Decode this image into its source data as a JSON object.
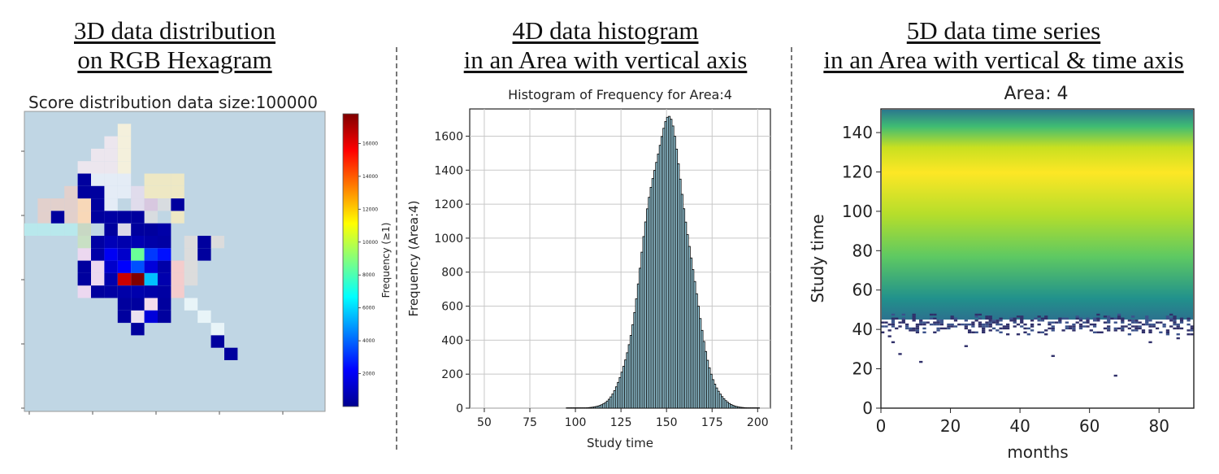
{
  "panels": {
    "left_title": [
      "3D data distribution",
      "on RGB Hexagram"
    ],
    "middle_title": [
      "4D data histogram",
      "in an Area with vertical axis"
    ],
    "right_title": [
      "5D data time series",
      "in an Area with vertical & time axis"
    ]
  },
  "chart_data": [
    {
      "type": "heatmap",
      "title": "Score distribution data size:100000",
      "colorbar_label": "Frequency (≥1)",
      "colorbar_ticks": [
        2000,
        4000,
        6000,
        8000,
        10000,
        12000,
        14000,
        16000
      ],
      "colorbar_range": [
        1,
        17800
      ],
      "colormap": "jet",
      "background_color": "#c0d6e4",
      "grid_size": [
        16,
        16
      ],
      "color_cells": [
        {
          "row": 1,
          "col": 7,
          "color": "#f4f0dc"
        },
        {
          "row": 2,
          "col": 6,
          "color": "#ece6ee"
        },
        {
          "row": 2,
          "col": 7,
          "color": "#f4f0dc"
        },
        {
          "row": 3,
          "col": 5,
          "color": "#ece6ee"
        },
        {
          "row": 3,
          "col": 6,
          "color": "#ece6ee"
        },
        {
          "row": 3,
          "col": 7,
          "color": "#f4f0dc"
        },
        {
          "row": 4,
          "col": 4,
          "color": "#ece6ee"
        },
        {
          "row": 4,
          "col": 5,
          "color": "#ece6ee"
        },
        {
          "row": 4,
          "col": 6,
          "color": "#ece6ee"
        },
        {
          "row": 4,
          "col": 7,
          "color": "#f4f0dc"
        },
        {
          "row": 5,
          "col": 5,
          "color": "#e4ecf6"
        },
        {
          "row": 5,
          "col": 6,
          "color": "#e4ecf6"
        },
        {
          "row": 5,
          "col": 7,
          "color": "#e4ecf6"
        },
        {
          "row": 5,
          "col": 9,
          "color": "#eee8c4"
        },
        {
          "row": 5,
          "col": 10,
          "color": "#eee8c4"
        },
        {
          "row": 5,
          "col": 11,
          "color": "#eee8c4"
        },
        {
          "row": 6,
          "col": 3,
          "color": "#e2d0cc"
        },
        {
          "row": 6,
          "col": 6,
          "color": "#e4ecf6"
        },
        {
          "row": 6,
          "col": 7,
          "color": "#e4ecf6"
        },
        {
          "row": 6,
          "col": 8,
          "color": "#e0dcec"
        },
        {
          "row": 6,
          "col": 9,
          "color": "#eee8c4"
        },
        {
          "row": 6,
          "col": 10,
          "color": "#eee8c4"
        },
        {
          "row": 6,
          "col": 11,
          "color": "#eee8c4"
        },
        {
          "row": 7,
          "col": 1,
          "color": "#e2d0cc"
        },
        {
          "row": 7,
          "col": 2,
          "color": "#e2d0cc"
        },
        {
          "row": 7,
          "col": 3,
          "color": "#e2d0cc"
        },
        {
          "row": 7,
          "col": 4,
          "color": "#f8d8b8"
        },
        {
          "row": 7,
          "col": 6,
          "color": "#e4ecf6"
        },
        {
          "row": 7,
          "col": 8,
          "color": "#e0dcec"
        },
        {
          "row": 7,
          "col": 9,
          "color": "#d8c8e0"
        },
        {
          "row": 7,
          "col": 10,
          "color": "#d8dce0"
        },
        {
          "row": 8,
          "col": 1,
          "color": "#e2d0cc"
        },
        {
          "row": 8,
          "col": 3,
          "color": "#e2d0cc"
        },
        {
          "row": 8,
          "col": 4,
          "color": "#f8d8b8"
        },
        {
          "row": 8,
          "col": 9,
          "color": "#d8dce0"
        },
        {
          "row": 8,
          "col": 11,
          "color": "#eee8c4"
        },
        {
          "row": 9,
          "col": 0,
          "color": "#b8e8ec"
        },
        {
          "row": 9,
          "col": 1,
          "color": "#b8e8ec"
        },
        {
          "row": 9,
          "col": 2,
          "color": "#b8e8ec"
        },
        {
          "row": 9,
          "col": 3,
          "color": "#b8e8ec"
        },
        {
          "row": 9,
          "col": 4,
          "color": "#c8d8c4"
        },
        {
          "row": 9,
          "col": 7,
          "color": "#dcd8e8"
        },
        {
          "row": 10,
          "col": 4,
          "color": "#c8e0c4"
        },
        {
          "row": 10,
          "col": 12,
          "color": "#dcdcdc"
        },
        {
          "row": 10,
          "col": 14,
          "color": "#dcdcdc"
        },
        {
          "row": 11,
          "col": 4,
          "color": "#ecd8f0"
        },
        {
          "row": 11,
          "col": 12,
          "color": "#dcdcdc"
        },
        {
          "row": 12,
          "col": 5,
          "color": "#ecd8f0"
        },
        {
          "row": 12,
          "col": 11,
          "color": "#f4cccc"
        },
        {
          "row": 12,
          "col": 12,
          "color": "#dcdcdc"
        },
        {
          "row": 13,
          "col": 5,
          "color": "#ecd8f0"
        },
        {
          "row": 13,
          "col": 11,
          "color": "#f4cccc"
        },
        {
          "row": 13,
          "col": 12,
          "color": "#dcdcdc"
        },
        {
          "row": 14,
          "col": 4,
          "color": "#ecd8f0"
        },
        {
          "row": 14,
          "col": 11,
          "color": "#f4cccc"
        },
        {
          "row": 15,
          "col": 9,
          "color": "#f4dcec"
        },
        {
          "row": 15,
          "col": 12,
          "color": "#e8f4f8"
        },
        {
          "row": 16,
          "col": 8,
          "color": "#ece0f0"
        },
        {
          "row": 16,
          "col": 13,
          "color": "#e8f4f8"
        },
        {
          "row": 17,
          "col": 14,
          "color": "#e8f4f8"
        }
      ],
      "counted_cells": [
        {
          "row": 5,
          "col": 4,
          "value": 300
        },
        {
          "row": 6,
          "col": 4,
          "value": 300
        },
        {
          "row": 6,
          "col": 5,
          "value": 300
        },
        {
          "row": 7,
          "col": 5,
          "value": 300
        },
        {
          "row": 8,
          "col": 5,
          "value": 300
        },
        {
          "row": 8,
          "col": 7,
          "value": 300
        },
        {
          "row": 8,
          "col": 8,
          "value": 300
        },
        {
          "row": 9,
          "col": 6,
          "value": 300
        },
        {
          "row": 9,
          "col": 8,
          "value": 300
        },
        {
          "row": 9,
          "col": 9,
          "value": 300
        },
        {
          "row": 7,
          "col": 11,
          "value": 300
        },
        {
          "row": 8,
          "col": 2,
          "value": 300
        },
        {
          "row": 8,
          "col": 6,
          "value": 400
        },
        {
          "row": 9,
          "col": 10,
          "value": 500
        },
        {
          "row": 10,
          "col": 5,
          "value": 400
        },
        {
          "row": 10,
          "col": 6,
          "value": 800
        },
        {
          "row": 10,
          "col": 7,
          "value": 600
        },
        {
          "row": 10,
          "col": 8,
          "value": 700
        },
        {
          "row": 10,
          "col": 9,
          "value": 500
        },
        {
          "row": 10,
          "col": 10,
          "value": 400
        },
        {
          "row": 10,
          "col": 13,
          "value": 300
        },
        {
          "row": 11,
          "col": 5,
          "value": 500
        },
        {
          "row": 11,
          "col": 6,
          "value": 2000
        },
        {
          "row": 11,
          "col": 7,
          "value": 1200
        },
        {
          "row": 11,
          "col": 8,
          "value": 8500
        },
        {
          "row": 11,
          "col": 9,
          "value": 3200
        },
        {
          "row": 11,
          "col": 10,
          "value": 2500
        },
        {
          "row": 11,
          "col": 13,
          "value": 300
        },
        {
          "row": 12,
          "col": 4,
          "value": 300
        },
        {
          "row": 12,
          "col": 6,
          "value": 1200
        },
        {
          "row": 12,
          "col": 7,
          "value": 2200
        },
        {
          "row": 12,
          "col": 8,
          "value": 3600
        },
        {
          "row": 12,
          "col": 9,
          "value": 1500
        },
        {
          "row": 12,
          "col": 10,
          "value": 500
        },
        {
          "row": 13,
          "col": 4,
          "value": 300
        },
        {
          "row": 13,
          "col": 6,
          "value": 600
        },
        {
          "row": 13,
          "col": 7,
          "value": 16500
        },
        {
          "row": 13,
          "col": 8,
          "value": 17800
        },
        {
          "row": 13,
          "col": 9,
          "value": 5600
        },
        {
          "row": 13,
          "col": 10,
          "value": 600
        },
        {
          "row": 14,
          "col": 5,
          "value": 300
        },
        {
          "row": 14,
          "col": 6,
          "value": 400
        },
        {
          "row": 14,
          "col": 7,
          "value": 500
        },
        {
          "row": 14,
          "col": 8,
          "value": 600
        },
        {
          "row": 14,
          "col": 9,
          "value": 500
        },
        {
          "row": 14,
          "col": 10,
          "value": 400
        },
        {
          "row": 15,
          "col": 7,
          "value": 300
        },
        {
          "row": 15,
          "col": 8,
          "value": 300
        },
        {
          "row": 15,
          "col": 10,
          "value": 300
        },
        {
          "row": 16,
          "col": 7,
          "value": 300
        },
        {
          "row": 16,
          "col": 9,
          "value": 1500
        },
        {
          "row": 16,
          "col": 10,
          "value": 300
        },
        {
          "row": 17,
          "col": 8,
          "value": 300
        },
        {
          "row": 18,
          "col": 14,
          "value": 300
        },
        {
          "row": 19,
          "col": 15,
          "value": 300
        }
      ]
    },
    {
      "type": "bar",
      "title": "Histogram of Frequency for Area:4",
      "xlabel": "Study time",
      "ylabel": "Frequency (Area:4)",
      "xlim": [
        42,
        207
      ],
      "ylim": [
        0,
        1760
      ],
      "xticks": [
        50,
        75,
        100,
        125,
        150,
        175,
        200
      ],
      "yticks": [
        0,
        200,
        400,
        600,
        800,
        1000,
        1200,
        1400,
        1600
      ],
      "grid": true,
      "bin_width": 1,
      "distribution": {
        "shape": "normal",
        "mean": 150,
        "std": 12,
        "peak": 1670,
        "x_min": 95,
        "x_max": 201
      }
    },
    {
      "type": "heatmap",
      "title": "Area: 4",
      "xlabel": "months",
      "ylabel": "Study time",
      "xlim": [
        0,
        90
      ],
      "ylim": [
        0,
        152
      ],
      "xticks": [
        0,
        20,
        40,
        60,
        80
      ],
      "yticks": [
        0,
        20,
        40,
        60,
        80,
        100,
        120,
        140
      ],
      "colormap": "viridis",
      "peak_study_time": 100,
      "dense_region_start": 45
    }
  ]
}
